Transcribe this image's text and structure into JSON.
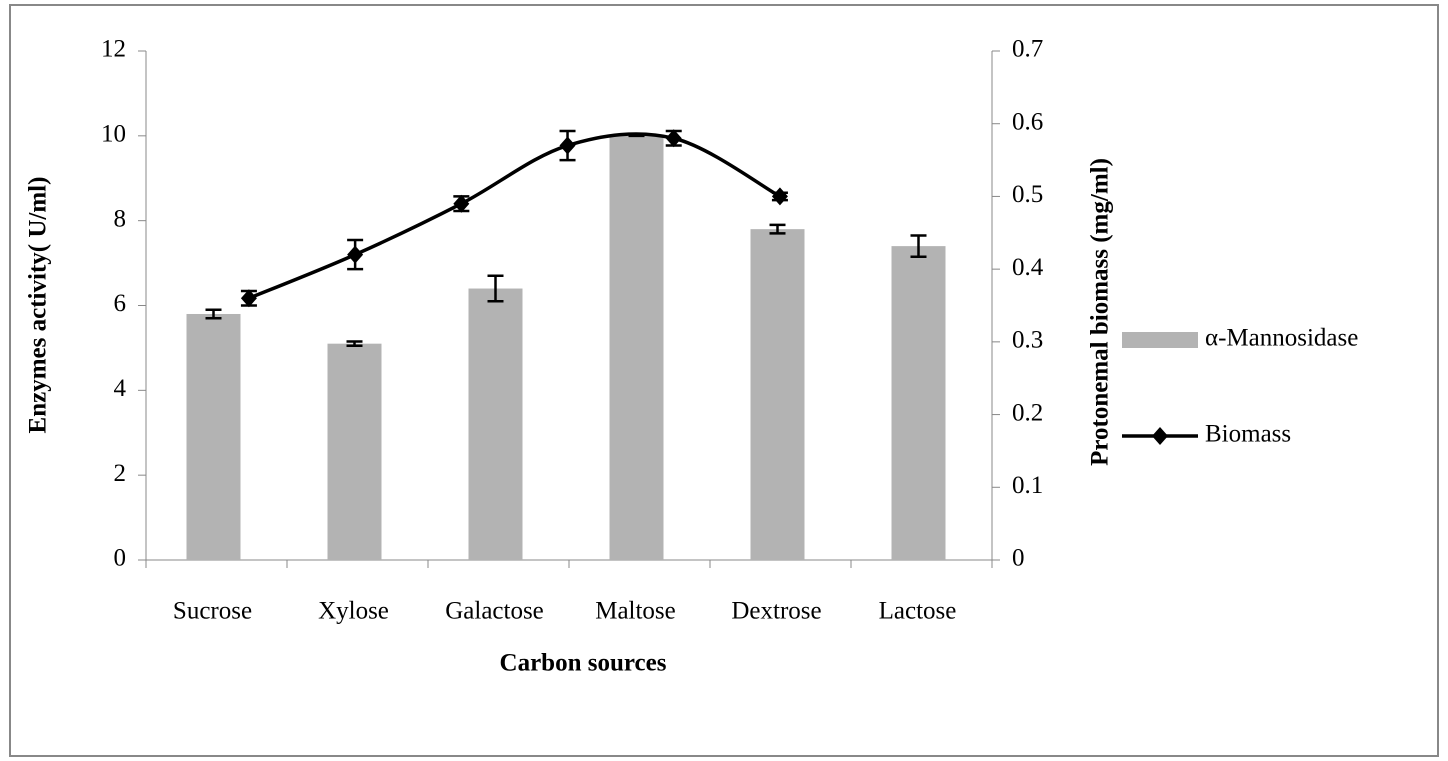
{
  "chart_data": {
    "type": "bar-line",
    "x_label": "Carbon sources",
    "y_label": "Enzymes activity( U/ml)",
    "y2_label": "Protonemal biomass (mg/ml)",
    "categories": [
      "Sucrose",
      "Xylose",
      "Galactose",
      "Maltose",
      "Dextrose",
      "Lactose"
    ],
    "series": [
      {
        "name": "α-Mannosidase",
        "type": "bar",
        "color": "#b3b3b3",
        "values": [
          5.8,
          5.1,
          6.4,
          10.0,
          7.8,
          7.4
        ],
        "errors": [
          0.1,
          0.05,
          0.3,
          0,
          0.1,
          0.25
        ]
      },
      {
        "name": "Biomass",
        "type": "line",
        "axis": "y2",
        "color": "#000000",
        "values": [
          0.36,
          0.42,
          0.49,
          0.57,
          0.58,
          0.5
        ],
        "errors": [
          0.01,
          0.02,
          0.01,
          0.02,
          0.01,
          0.005
        ]
      }
    ],
    "ylim": [
      0,
      12
    ],
    "yticks": [
      0,
      2,
      4,
      6,
      8,
      10,
      12
    ],
    "y2lim": [
      0,
      0.7
    ],
    "y2ticks": [
      0,
      0.1,
      0.2,
      0.3,
      0.4,
      0.5,
      0.6,
      0.7
    ],
    "legend": "right"
  }
}
